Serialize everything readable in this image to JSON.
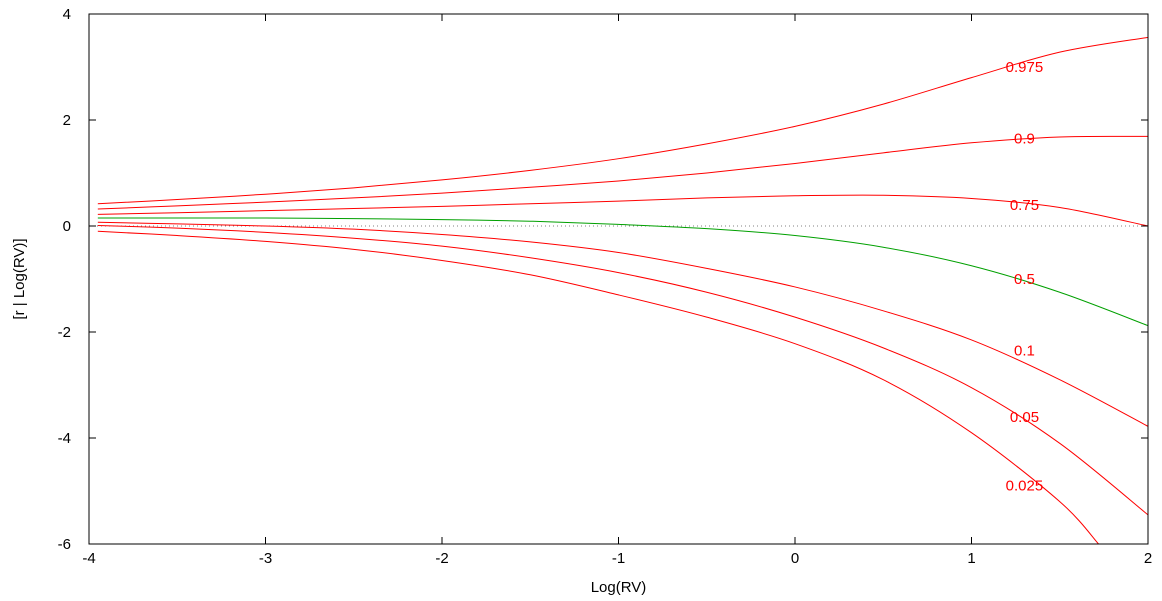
{
  "chart_data": {
    "type": "line",
    "title": "",
    "xlabel": "Log(RV)",
    "ylabel": "[r | Log(RV)]",
    "xlim": [
      -4,
      2
    ],
    "ylim": [
      -6,
      4
    ],
    "x_ticks": [
      {
        "value": -4,
        "label": "-4"
      },
      {
        "value": -3,
        "label": "-3"
      },
      {
        "value": -2,
        "label": "-2"
      },
      {
        "value": -1,
        "label": "-1"
      },
      {
        "value": 0,
        "label": "0"
      },
      {
        "value": 1,
        "label": "1"
      },
      {
        "value": 2,
        "label": "2"
      }
    ],
    "y_ticks": [
      {
        "value": -6,
        "label": "-6"
      },
      {
        "value": -4,
        "label": "-4"
      },
      {
        "value": -2,
        "label": "-2"
      },
      {
        "value": 0,
        "label": "0"
      },
      {
        "value": 2,
        "label": "2"
      },
      {
        "value": 4,
        "label": "4"
      }
    ],
    "grid": false,
    "legend": "none",
    "reference_line": {
      "y": 0,
      "style": "dotted",
      "color": "#808080"
    },
    "series": [
      {
        "name": "0.975",
        "color": "#ff0000",
        "label_at": {
          "x": 1.3,
          "y": 3.0
        },
        "x": [
          -3.95,
          -3.5,
          -3.0,
          -2.5,
          -2.0,
          -1.5,
          -1.0,
          -0.5,
          0.0,
          0.5,
          1.0,
          1.5,
          2.0
        ],
        "y": [
          0.42,
          0.5,
          0.6,
          0.72,
          0.87,
          1.05,
          1.27,
          1.55,
          1.88,
          2.3,
          2.8,
          3.28,
          3.56
        ]
      },
      {
        "name": "0.9",
        "color": "#ff0000",
        "label_at": {
          "x": 1.3,
          "y": 1.65
        },
        "x": [
          -3.95,
          -3.5,
          -3.0,
          -2.5,
          -2.0,
          -1.5,
          -1.0,
          -0.5,
          0.0,
          0.5,
          1.0,
          1.5,
          2.0
        ],
        "y": [
          0.32,
          0.38,
          0.45,
          0.53,
          0.62,
          0.73,
          0.85,
          1.0,
          1.18,
          1.38,
          1.57,
          1.68,
          1.69
        ]
      },
      {
        "name": "0.75",
        "color": "#ff0000",
        "label_at": {
          "x": 1.3,
          "y": 0.4
        },
        "x": [
          -3.95,
          -3.5,
          -3.0,
          -2.5,
          -2.0,
          -1.5,
          -1.0,
          -0.5,
          0.0,
          0.5,
          1.0,
          1.5,
          2.0
        ],
        "y": [
          0.22,
          0.25,
          0.29,
          0.33,
          0.37,
          0.42,
          0.47,
          0.53,
          0.57,
          0.58,
          0.52,
          0.35,
          0.0
        ]
      },
      {
        "name": "0.5",
        "color": "#00a000",
        "label_at": {
          "x": 1.3,
          "y": -1.0
        },
        "x": [
          -3.95,
          -3.5,
          -3.0,
          -2.5,
          -2.0,
          -1.5,
          -1.0,
          -0.5,
          0.0,
          0.5,
          1.0,
          1.5,
          2.0
        ],
        "y": [
          0.15,
          0.15,
          0.15,
          0.14,
          0.12,
          0.09,
          0.03,
          -0.05,
          -0.18,
          -0.4,
          -0.75,
          -1.25,
          -1.88
        ]
      },
      {
        "name": "0.1",
        "color": "#ff0000",
        "label_at": {
          "x": 1.3,
          "y": -2.35
        },
        "x": [
          -3.95,
          -3.5,
          -3.0,
          -2.5,
          -2.0,
          -1.5,
          -1.0,
          -0.5,
          0.0,
          0.5,
          1.0,
          1.5,
          2.0
        ],
        "y": [
          0.07,
          0.04,
          0.0,
          -0.06,
          -0.16,
          -0.3,
          -0.5,
          -0.8,
          -1.15,
          -1.6,
          -2.15,
          -2.9,
          -3.78
        ]
      },
      {
        "name": "0.05",
        "color": "#ff0000",
        "label_at": {
          "x": 1.3,
          "y": -3.6
        },
        "x": [
          -3.95,
          -3.5,
          -3.0,
          -2.5,
          -2.0,
          -1.5,
          -1.0,
          -0.5,
          0.0,
          0.5,
          1.0,
          1.5,
          2.0
        ],
        "y": [
          0.01,
          -0.04,
          -0.12,
          -0.23,
          -0.38,
          -0.6,
          -0.88,
          -1.25,
          -1.72,
          -2.3,
          -3.05,
          -4.1,
          -5.45
        ]
      },
      {
        "name": "0.025",
        "color": "#ff0000",
        "label_at": {
          "x": 1.3,
          "y": -4.9
        },
        "x": [
          -3.95,
          -3.5,
          -3.0,
          -2.5,
          -2.0,
          -1.5,
          -1.0,
          -0.5,
          0.0,
          0.5,
          1.0,
          1.5,
          1.72
        ],
        "y": [
          -0.1,
          -0.18,
          -0.29,
          -0.44,
          -0.65,
          -0.92,
          -1.3,
          -1.72,
          -2.22,
          -2.9,
          -3.9,
          -5.2,
          -6.0
        ]
      }
    ]
  }
}
